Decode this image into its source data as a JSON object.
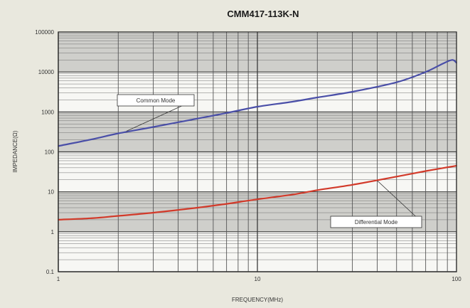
{
  "chart_data": {
    "type": "line",
    "title": "CMM417-113K-N",
    "xlabel": "FREQUENCY(MHz)",
    "ylabel": "IMPEDANCE(Ω)",
    "xscale": "log",
    "yscale": "log",
    "xlim": [
      1,
      100
    ],
    "ylim": [
      0.1,
      100000
    ],
    "x_ticks": [
      {
        "value": 1,
        "label": "1"
      },
      {
        "value": 10,
        "label": "10"
      },
      {
        "value": 100,
        "label": "100"
      }
    ],
    "y_ticks": [
      {
        "value": 100000,
        "label": "100000"
      },
      {
        "value": 10000,
        "label": "10000"
      },
      {
        "value": 1000,
        "label": "1000"
      },
      {
        "value": 100,
        "label": "100"
      },
      {
        "value": 10,
        "label": "10"
      },
      {
        "value": 1,
        "label": "1"
      },
      {
        "value": 0.1,
        "label": "0.1"
      }
    ],
    "grid": true,
    "series": [
      {
        "name": "Common Mode",
        "color": "#4a4fa8",
        "label_position": "upper-left",
        "x": [
          1,
          1.5,
          2,
          3,
          5,
          7,
          10,
          15,
          20,
          30,
          50,
          70,
          85,
          95,
          100
        ],
        "y": [
          140,
          210,
          290,
          420,
          680,
          940,
          1350,
          1800,
          2300,
          3200,
          5500,
          10000,
          16000,
          20000,
          17000
        ]
      },
      {
        "name": "Differential Mode",
        "color": "#d23a2a",
        "label_position": "lower-right",
        "x": [
          1,
          1.5,
          2,
          3,
          5,
          7,
          10,
          15,
          20,
          30,
          50,
          70,
          100
        ],
        "y": [
          2,
          2.2,
          2.5,
          3,
          4,
          5,
          6.5,
          8.5,
          11,
          15,
          24,
          33,
          45
        ]
      }
    ]
  }
}
